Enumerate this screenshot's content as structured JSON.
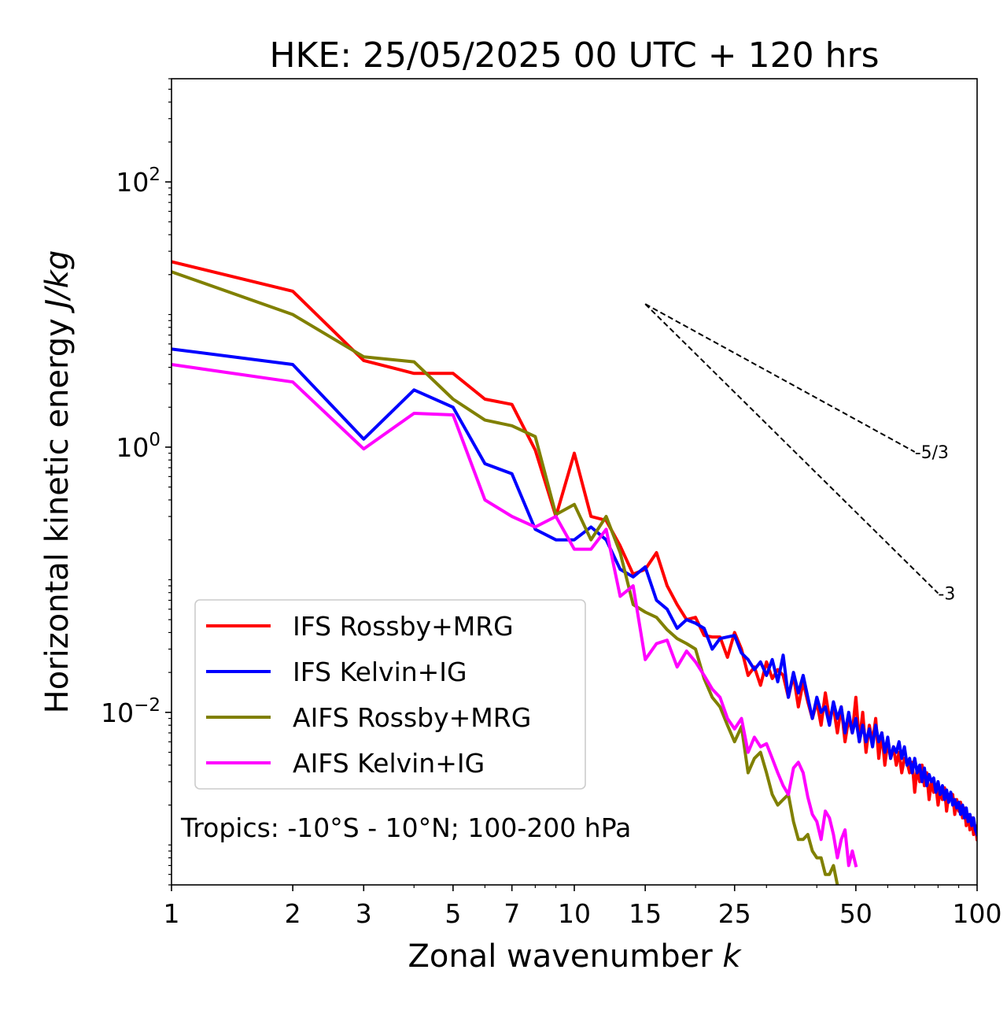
{
  "chart_data": {
    "type": "line",
    "title": "HKE: 25/05/2025 00 UTC + 120 hrs",
    "xlabel": "Zonal wavenumber",
    "xlabel_var": "k",
    "ylabel": "Horizontal kinetic energy",
    "ylabel_units": "J/kg",
    "xscale": "log",
    "yscale": "log",
    "xlim": [
      1,
      100
    ],
    "ylim": [
      0.0005,
      600
    ],
    "x_ticks": [
      1,
      2,
      3,
      5,
      7,
      10,
      15,
      25,
      50,
      100
    ],
    "x_tick_labels": [
      "1",
      "2",
      "3",
      "5",
      "7",
      "10",
      "15",
      "25",
      "50",
      "100"
    ],
    "y_ticks": [
      0.01,
      1,
      100
    ],
    "y_tick_labels": [
      {
        "base": "10",
        "exp": "−2"
      },
      {
        "base": "10",
        "exp": "0"
      },
      {
        "base": "10",
        "exp": "2"
      }
    ],
    "legend_position": "lower-left",
    "annotation": "Tropics: -10°S - 10°N; 100-200 hPa",
    "reference_lines": [
      {
        "label": "-5/3",
        "slope": -1.6667,
        "x_start": 15,
        "y_start": 12,
        "x_end": 70
      },
      {
        "label": "-3",
        "slope": -3,
        "x_start": 15,
        "y_start": 12,
        "x_end": 80
      }
    ],
    "series": [
      {
        "name": "IFS Rossby+MRG",
        "color": "#ff0000",
        "points": [
          [
            1,
            25
          ],
          [
            2,
            15
          ],
          [
            3,
            4.5
          ],
          [
            4,
            3.6
          ],
          [
            5,
            3.6
          ],
          [
            6,
            2.3
          ],
          [
            7,
            2.1
          ],
          [
            8,
            0.95
          ],
          [
            9,
            0.3
          ],
          [
            10,
            0.9
          ],
          [
            11,
            0.3
          ],
          [
            12,
            0.28
          ],
          [
            13,
            0.18
          ],
          [
            14,
            0.11
          ],
          [
            15,
            0.12
          ],
          [
            16,
            0.16
          ],
          [
            17,
            0.09
          ],
          [
            18,
            0.065
          ],
          [
            19,
            0.05
          ],
          [
            20,
            0.052
          ],
          [
            21,
            0.038
          ],
          [
            22,
            0.037
          ],
          [
            23,
            0.037
          ],
          [
            24,
            0.026
          ],
          [
            25,
            0.04
          ],
          [
            26,
            0.03
          ],
          [
            27,
            0.019
          ],
          [
            28,
            0.022
          ],
          [
            29,
            0.016
          ],
          [
            30,
            0.024
          ],
          [
            31,
            0.018
          ],
          [
            32,
            0.021
          ],
          [
            33,
            0.019
          ],
          [
            34,
            0.013
          ],
          [
            35,
            0.019
          ],
          [
            36,
            0.011
          ],
          [
            37,
            0.017
          ],
          [
            38,
            0.012
          ],
          [
            39,
            0.009
          ],
          [
            40,
            0.012
          ],
          [
            41,
            0.008
          ],
          [
            42,
            0.014
          ],
          [
            43,
            0.009
          ],
          [
            44,
            0.011
          ],
          [
            45,
            0.007
          ],
          [
            46,
            0.011
          ],
          [
            47,
            0.006
          ],
          [
            48,
            0.009
          ],
          [
            49,
            0.007
          ],
          [
            50,
            0.013
          ],
          [
            51,
            0.006
          ],
          [
            52,
            0.01
          ],
          [
            53,
            0.005
          ],
          [
            54,
            0.008
          ],
          [
            55,
            0.006
          ],
          [
            56,
            0.009
          ],
          [
            57,
            0.0045
          ],
          [
            58,
            0.007
          ],
          [
            59,
            0.004
          ],
          [
            60,
            0.006
          ],
          [
            61,
            0.0045
          ],
          [
            62,
            0.0055
          ],
          [
            63,
            0.004
          ],
          [
            64,
            0.005
          ],
          [
            65,
            0.0035
          ],
          [
            66,
            0.0045
          ],
          [
            67,
            0.0042
          ],
          [
            68,
            0.0035
          ],
          [
            69,
            0.0042
          ],
          [
            70,
            0.0025
          ],
          [
            71,
            0.0038
          ],
          [
            72,
            0.003
          ],
          [
            73,
            0.004
          ],
          [
            74,
            0.0028
          ],
          [
            75,
            0.0035
          ],
          [
            76,
            0.0022
          ],
          [
            77,
            0.003
          ],
          [
            78,
            0.0025
          ],
          [
            79,
            0.0028
          ],
          [
            80,
            0.002
          ],
          [
            81,
            0.0026
          ],
          [
            82,
            0.0022
          ],
          [
            83,
            0.0027
          ],
          [
            84,
            0.0018
          ],
          [
            85,
            0.0024
          ],
          [
            86,
            0.0022
          ],
          [
            87,
            0.0024
          ],
          [
            88,
            0.0017
          ],
          [
            89,
            0.0022
          ],
          [
            90,
            0.0018
          ],
          [
            91,
            0.0021
          ],
          [
            92,
            0.0016
          ],
          [
            93,
            0.0019
          ],
          [
            94,
            0.0014
          ],
          [
            95,
            0.0017
          ],
          [
            96,
            0.0013
          ],
          [
            97,
            0.0016
          ],
          [
            98,
            0.0012
          ],
          [
            99,
            0.0014
          ],
          [
            100,
            0.0011
          ]
        ]
      },
      {
        "name": "IFS Kelvin+IG",
        "color": "#0000ff",
        "points": [
          [
            1,
            5.5
          ],
          [
            2,
            4.2
          ],
          [
            3,
            1.15
          ],
          [
            4,
            2.7
          ],
          [
            5,
            2.0
          ],
          [
            6,
            0.75
          ],
          [
            7,
            0.63
          ],
          [
            8,
            0.24
          ],
          [
            9,
            0.2
          ],
          [
            10,
            0.2
          ],
          [
            11,
            0.25
          ],
          [
            12,
            0.2
          ],
          [
            13,
            0.12
          ],
          [
            14,
            0.105
          ],
          [
            15,
            0.125
          ],
          [
            16,
            0.07
          ],
          [
            17,
            0.06
          ],
          [
            18,
            0.043
          ],
          [
            19,
            0.05
          ],
          [
            20,
            0.047
          ],
          [
            21,
            0.043
          ],
          [
            22,
            0.03
          ],
          [
            23,
            0.036
          ],
          [
            24,
            0.037
          ],
          [
            25,
            0.038
          ],
          [
            26,
            0.028
          ],
          [
            27,
            0.025
          ],
          [
            28,
            0.021
          ],
          [
            29,
            0.024
          ],
          [
            30,
            0.019
          ],
          [
            31,
            0.025
          ],
          [
            32,
            0.017
          ],
          [
            33,
            0.027
          ],
          [
            34,
            0.013
          ],
          [
            35,
            0.02
          ],
          [
            36,
            0.014
          ],
          [
            37,
            0.019
          ],
          [
            38,
            0.013
          ],
          [
            39,
            0.009
          ],
          [
            40,
            0.013
          ],
          [
            41,
            0.01
          ],
          [
            42,
            0.011
          ],
          [
            43,
            0.008
          ],
          [
            44,
            0.012
          ],
          [
            45,
            0.009
          ],
          [
            46,
            0.011
          ],
          [
            47,
            0.007
          ],
          [
            48,
            0.01
          ],
          [
            49,
            0.007
          ],
          [
            50,
            0.009
          ],
          [
            51,
            0.006
          ],
          [
            52,
            0.008
          ],
          [
            53,
            0.006
          ],
          [
            54,
            0.0075
          ],
          [
            55,
            0.0055
          ],
          [
            56,
            0.008
          ],
          [
            57,
            0.006
          ],
          [
            58,
            0.007
          ],
          [
            59,
            0.005
          ],
          [
            60,
            0.0065
          ],
          [
            61,
            0.0045
          ],
          [
            62,
            0.0055
          ],
          [
            63,
            0.005
          ],
          [
            64,
            0.006
          ],
          [
            65,
            0.0045
          ],
          [
            66,
            0.0055
          ],
          [
            67,
            0.004
          ],
          [
            68,
            0.0045
          ],
          [
            69,
            0.0035
          ],
          [
            70,
            0.0045
          ],
          [
            71,
            0.0035
          ],
          [
            72,
            0.004
          ],
          [
            73,
            0.003
          ],
          [
            74,
            0.0038
          ],
          [
            75,
            0.0028
          ],
          [
            76,
            0.0034
          ],
          [
            77,
            0.003
          ],
          [
            78,
            0.0032
          ],
          [
            79,
            0.0025
          ],
          [
            80,
            0.003
          ],
          [
            81,
            0.0024
          ],
          [
            82,
            0.0028
          ],
          [
            83,
            0.0022
          ],
          [
            84,
            0.0026
          ],
          [
            85,
            0.0021
          ],
          [
            86,
            0.0025
          ],
          [
            87,
            0.002
          ],
          [
            88,
            0.0022
          ],
          [
            89,
            0.0019
          ],
          [
            90,
            0.0021
          ],
          [
            91,
            0.0017
          ],
          [
            92,
            0.002
          ],
          [
            93,
            0.0016
          ],
          [
            94,
            0.0019
          ],
          [
            95,
            0.0015
          ],
          [
            96,
            0.0017
          ],
          [
            97,
            0.0014
          ],
          [
            98,
            0.0016
          ],
          [
            99,
            0.0013
          ],
          [
            100,
            0.0012
          ]
        ]
      },
      {
        "name": "AIFS Rossby+MRG",
        "color": "#808000",
        "points": [
          [
            1,
            21
          ],
          [
            2,
            10
          ],
          [
            3,
            4.8
          ],
          [
            4,
            4.4
          ],
          [
            5,
            2.3
          ],
          [
            6,
            1.6
          ],
          [
            7,
            1.45
          ],
          [
            8,
            1.2
          ],
          [
            9,
            0.31
          ],
          [
            10,
            0.37
          ],
          [
            11,
            0.2
          ],
          [
            12,
            0.3
          ],
          [
            13,
            0.16
          ],
          [
            14,
            0.065
          ],
          [
            15,
            0.057
          ],
          [
            16,
            0.052
          ],
          [
            17,
            0.042
          ],
          [
            18,
            0.036
          ],
          [
            19,
            0.033
          ],
          [
            20,
            0.03
          ],
          [
            21,
            0.018
          ],
          [
            22,
            0.013
          ],
          [
            23,
            0.011
          ],
          [
            24,
            0.008
          ],
          [
            25,
            0.006
          ],
          [
            26,
            0.0078
          ],
          [
            27,
            0.0035
          ],
          [
            28,
            0.0045
          ],
          [
            29,
            0.005
          ],
          [
            30,
            0.0035
          ],
          [
            31,
            0.0024
          ],
          [
            32,
            0.002
          ],
          [
            33,
            0.0022
          ],
          [
            34,
            0.0024
          ],
          [
            35,
            0.0015
          ],
          [
            36,
            0.0011
          ],
          [
            37,
            0.0011
          ],
          [
            38,
            0.0012
          ],
          [
            39,
            0.0009
          ],
          [
            40,
            0.0008
          ],
          [
            41,
            0.0008
          ],
          [
            42,
            0.0006
          ],
          [
            43,
            0.0006
          ],
          [
            44,
            0.0007
          ],
          [
            45,
            0.0005
          ]
        ]
      },
      {
        "name": "AIFS Kelvin+IG",
        "color": "#ff00ff",
        "points": [
          [
            1,
            4.2
          ],
          [
            2,
            3.1
          ],
          [
            3,
            0.97
          ],
          [
            4,
            1.8
          ],
          [
            5,
            1.75
          ],
          [
            6,
            0.4
          ],
          [
            7,
            0.3
          ],
          [
            8,
            0.25
          ],
          [
            9,
            0.3
          ],
          [
            10,
            0.17
          ],
          [
            11,
            0.17
          ],
          [
            12,
            0.24
          ],
          [
            13,
            0.075
          ],
          [
            14,
            0.09
          ],
          [
            15,
            0.025
          ],
          [
            16,
            0.033
          ],
          [
            17,
            0.035
          ],
          [
            18,
            0.022
          ],
          [
            19,
            0.029
          ],
          [
            20,
            0.024
          ],
          [
            21,
            0.019
          ],
          [
            22,
            0.015
          ],
          [
            23,
            0.013
          ],
          [
            24,
            0.009
          ],
          [
            25,
            0.0075
          ],
          [
            26,
            0.009
          ],
          [
            27,
            0.005
          ],
          [
            28,
            0.0065
          ],
          [
            29,
            0.0055
          ],
          [
            30,
            0.0058
          ],
          [
            31,
            0.0045
          ],
          [
            32,
            0.0035
          ],
          [
            33,
            0.0028
          ],
          [
            34,
            0.0024
          ],
          [
            35,
            0.0038
          ],
          [
            36,
            0.0042
          ],
          [
            37,
            0.0035
          ],
          [
            38,
            0.0023
          ],
          [
            39,
            0.0017
          ],
          [
            40,
            0.0015
          ],
          [
            41,
            0.0011
          ],
          [
            42,
            0.0018
          ],
          [
            43,
            0.0016
          ],
          [
            44,
            0.0012
          ],
          [
            45,
            0.0008
          ],
          [
            46,
            0.0011
          ],
          [
            47,
            0.0013
          ],
          [
            48,
            0.0007
          ],
          [
            49,
            0.0009
          ],
          [
            50,
            0.0007
          ]
        ]
      }
    ]
  }
}
